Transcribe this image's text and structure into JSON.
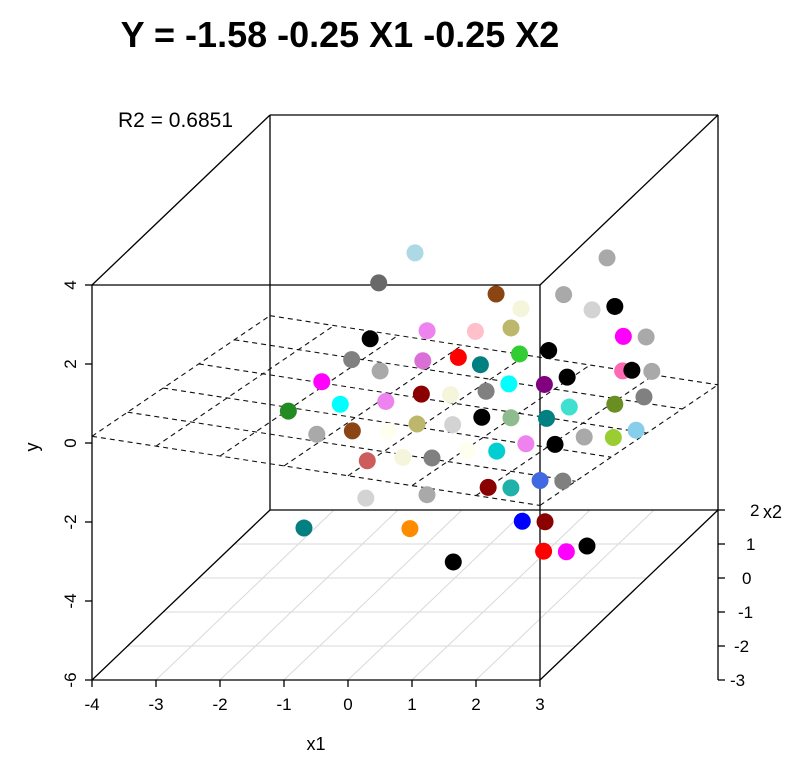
{
  "chart_data": {
    "type": "scatter",
    "subtype": "scatter3d-with-regression-plane",
    "title": "Y = -1.58 -0.25 X1 -0.25 X2",
    "r2_label": "R2 = 0.6851",
    "xlabel": "x1",
    "ylabel": "y",
    "zlabel": "x2",
    "x1_range": [
      -4,
      3
    ],
    "x1_ticks": [
      -4,
      -3,
      -2,
      -1,
      0,
      1,
      2,
      3
    ],
    "x2_range": [
      -3,
      2
    ],
    "x2_ticks": [
      -3,
      -2,
      -1,
      0,
      1,
      2
    ],
    "y_range": [
      -6,
      4
    ],
    "y_ticks": [
      -6,
      -4,
      -2,
      0,
      2,
      4
    ],
    "grid": "floor-only",
    "legend": "none",
    "plane": {
      "intercept": -1.58,
      "x1_coef": -0.25,
      "x2_coef": -0.25,
      "style": "dashed-mesh"
    },
    "points": [
      [
        -0.9,
        0.5,
        1.8,
        "#add8e6"
      ],
      [
        -1.3,
        0.2,
        1.3,
        "#696969"
      ],
      [
        1.6,
        1.4,
        0.9,
        "#a9a9a9"
      ],
      [
        -1.1,
        -0.4,
        0.4,
        "#000000"
      ],
      [
        0.2,
        0.8,
        0.5,
        "#8b4513"
      ],
      [
        0.7,
        0.6,
        0.3,
        "#f5f5dc"
      ],
      [
        1.2,
        0.9,
        0.4,
        "#a9a9a9"
      ],
      [
        -0.6,
        0.3,
        0.0,
        "#ee82ee"
      ],
      [
        -1.5,
        -0.2,
        -0.3,
        "#808080"
      ],
      [
        0.1,
        0.4,
        -0.1,
        "#ffc0cb"
      ],
      [
        0.6,
        0.5,
        -0.1,
        "#bdb76b"
      ],
      [
        1.7,
        0.8,
        0.1,
        "#d3d3d3"
      ],
      [
        2.0,
        0.9,
        0.1,
        "#000000"
      ],
      [
        -1.8,
        -0.5,
        -0.6,
        "#ff00ff"
      ],
      [
        -1.0,
        -0.3,
        -0.5,
        "#a9a9a9"
      ],
      [
        -0.5,
        0.0,
        -0.5,
        "#da70d6"
      ],
      [
        0.0,
        0.1,
        -0.5,
        "#ff0000"
      ],
      [
        0.4,
        0.0,
        -0.6,
        "#008080"
      ],
      [
        0.9,
        0.2,
        -0.5,
        "#32cd32"
      ],
      [
        1.3,
        0.3,
        -0.5,
        "#000000"
      ],
      [
        2.3,
        0.6,
        -0.4,
        "#ff00ff"
      ],
      [
        2.6,
        0.7,
        -0.5,
        "#a9a9a9"
      ],
      [
        -2.1,
        -0.9,
        -1.0,
        "#228b22"
      ],
      [
        -1.4,
        -0.7,
        -1.0,
        "#00ffff"
      ],
      [
        -0.8,
        -0.5,
        -1.1,
        "#ee82ee"
      ],
      [
        -0.3,
        -0.4,
        -1.0,
        "#8b0000"
      ],
      [
        0.1,
        -0.3,
        -1.1,
        "#f5f5dc"
      ],
      [
        0.6,
        -0.2,
        -1.1,
        "#808080"
      ],
      [
        0.9,
        -0.1,
        -1.0,
        "#00ffff"
      ],
      [
        1.4,
        0.0,
        -1.1,
        "#800080"
      ],
      [
        1.7,
        0.1,
        -1.0,
        "#000000"
      ],
      [
        2.4,
        0.4,
        -1.1,
        "#ff69b4"
      ],
      [
        2.8,
        0.5,
        -1.2,
        "#a9a9a9"
      ],
      [
        2.6,
        0.3,
        -1.0,
        "#000000"
      ],
      [
        -1.6,
        -1.0,
        -1.5,
        "#a9a9a9"
      ],
      [
        -1.1,
        -0.9,
        -1.5,
        "#8b4513"
      ],
      [
        -0.6,
        -0.8,
        -1.6,
        "#fffff0"
      ],
      [
        -0.2,
        -0.7,
        -1.5,
        "#bdb76b"
      ],
      [
        0.3,
        -0.6,
        -1.6,
        "#d3d3d3"
      ],
      [
        0.7,
        -0.5,
        -1.5,
        "#000000"
      ],
      [
        1.1,
        -0.4,
        -1.6,
        "#8fbc8f"
      ],
      [
        1.6,
        -0.3,
        -1.7,
        "#008080"
      ],
      [
        1.9,
        -0.2,
        -1.5,
        "#40e0d0"
      ],
      [
        2.5,
        0.0,
        -1.6,
        "#6b8e23"
      ],
      [
        2.9,
        0.1,
        -1.5,
        "#808080"
      ],
      [
        -0.7,
        -1.2,
        -2.0,
        "#cd5c5c"
      ],
      [
        -0.2,
        -1.1,
        -2.0,
        "#f5f5dc"
      ],
      [
        0.2,
        -1.0,
        -2.1,
        "#808080"
      ],
      [
        0.7,
        -0.9,
        -2.0,
        "#fffff0"
      ],
      [
        1.1,
        -0.8,
        -2.1,
        "#00ced1"
      ],
      [
        1.5,
        -0.7,
        -2.0,
        "#ee82ee"
      ],
      [
        1.9,
        -0.6,
        -2.1,
        "#000000"
      ],
      [
        2.3,
        -0.5,
        -2.0,
        "#a9a9a9"
      ],
      [
        2.7,
        -0.4,
        -2.1,
        "#9acd32"
      ],
      [
        3.0,
        -0.3,
        -2.0,
        "#87ceeb"
      ],
      [
        -0.5,
        -1.6,
        -2.6,
        "#d3d3d3"
      ],
      [
        0.4,
        -1.5,
        -2.6,
        "#a9a9a9"
      ],
      [
        1.3,
        -1.4,
        -2.5,
        "#8b0000"
      ],
      [
        1.6,
        -1.3,
        -2.6,
        "#20b2aa"
      ],
      [
        2.0,
        -1.2,
        -2.5,
        "#4169e1"
      ],
      [
        2.3,
        -1.1,
        -2.6,
        "#808080"
      ],
      [
        -1.3,
        -1.9,
        -3.1,
        "#008080"
      ],
      [
        0.3,
        -1.8,
        -3.2,
        "#ff8c00"
      ],
      [
        2.0,
        -1.7,
        -3.1,
        "#0000ff"
      ],
      [
        2.3,
        -1.6,
        -3.2,
        "#8b0000"
      ],
      [
        1.2,
        -2.2,
        -3.7,
        "#000000"
      ],
      [
        2.5,
        -2.0,
        -3.6,
        "#ff0000"
      ],
      [
        2.8,
        -1.9,
        -3.7,
        "#ff00ff"
      ],
      [
        2.9,
        -1.5,
        -3.9,
        "#000000"
      ]
    ]
  }
}
